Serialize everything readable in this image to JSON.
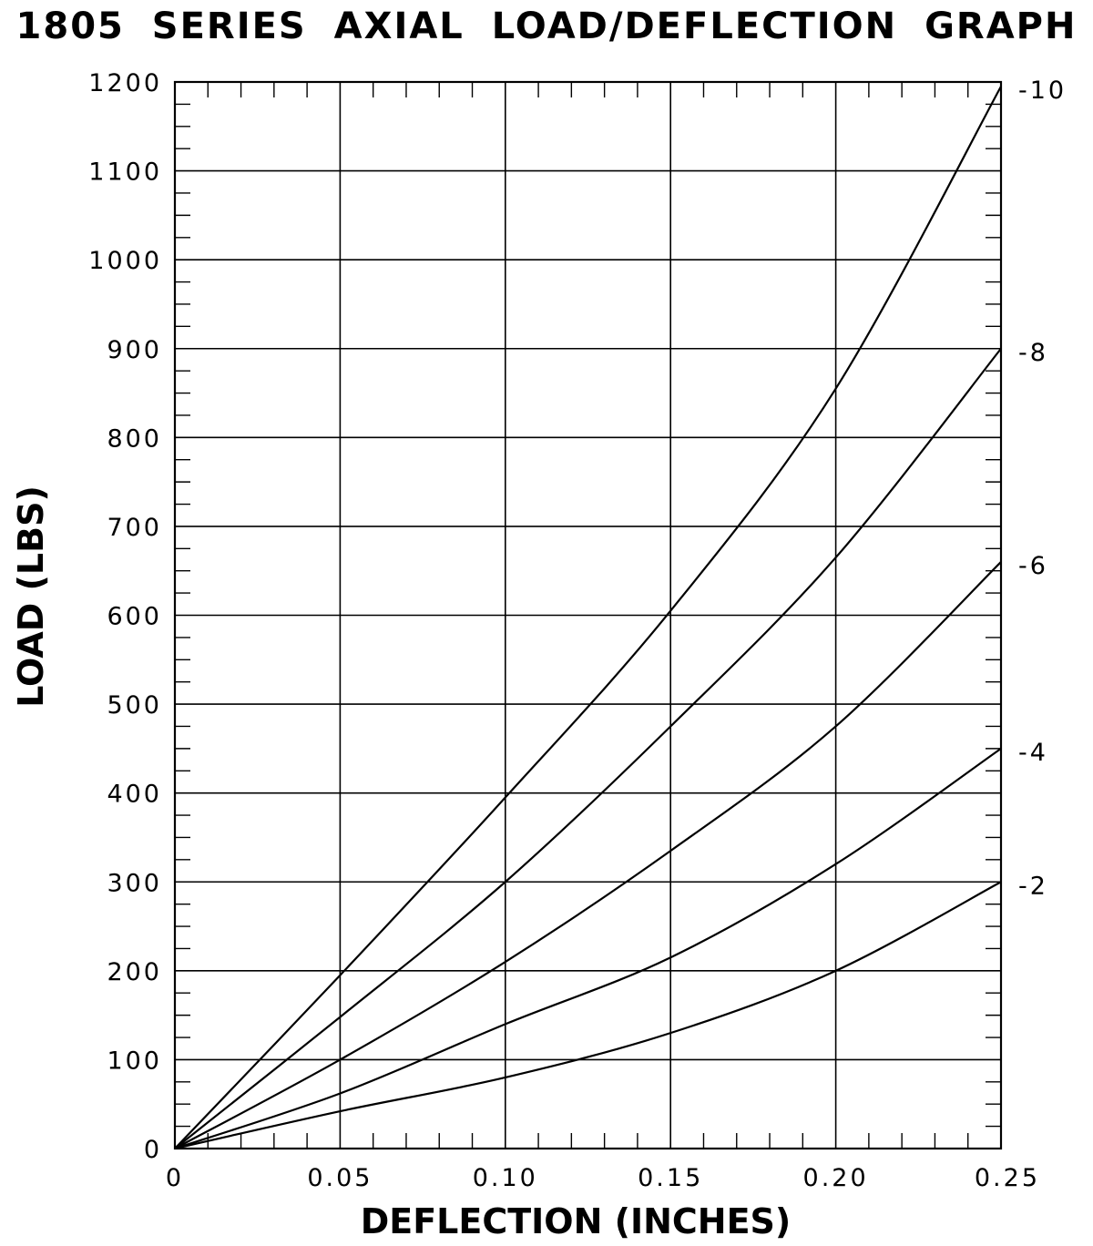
{
  "chart_data": {
    "type": "line",
    "title": "1805 SERIES AXIAL LOAD/DEFLECTION GRAPH",
    "xlabel": "DEFLECTION (INCHES)",
    "ylabel": "LOAD (LBS)",
    "xlim": [
      0,
      0.25
    ],
    "ylim": [
      0,
      1200
    ],
    "grid": true,
    "x_ticks": [
      "0",
      "0.05",
      "0.10",
      "0.15",
      "0.20",
      "0.25"
    ],
    "y_ticks": [
      "0",
      "100",
      "200",
      "300",
      "400",
      "500",
      "600",
      "700",
      "800",
      "900",
      "1000",
      "1100",
      "1200"
    ],
    "series": [
      {
        "name": "-10",
        "x": [
          0,
          0.05,
          0.1,
          0.15,
          0.2,
          0.25
        ],
        "y": [
          0,
          195,
          395,
          605,
          855,
          1195
        ]
      },
      {
        "name": "-8",
        "x": [
          0,
          0.05,
          0.1,
          0.15,
          0.2,
          0.25
        ],
        "y": [
          0,
          148,
          300,
          475,
          665,
          900
        ]
      },
      {
        "name": "-6",
        "x": [
          0,
          0.05,
          0.1,
          0.15,
          0.2,
          0.25
        ],
        "y": [
          0,
          100,
          210,
          335,
          475,
          660
        ]
      },
      {
        "name": "-4",
        "x": [
          0,
          0.05,
          0.1,
          0.15,
          0.2,
          0.25
        ],
        "y": [
          0,
          62,
          140,
          215,
          320,
          450
        ]
      },
      {
        "name": "-2",
        "x": [
          0,
          0.05,
          0.1,
          0.15,
          0.2,
          0.25
        ],
        "y": [
          0,
          42,
          80,
          130,
          200,
          300
        ]
      }
    ]
  }
}
